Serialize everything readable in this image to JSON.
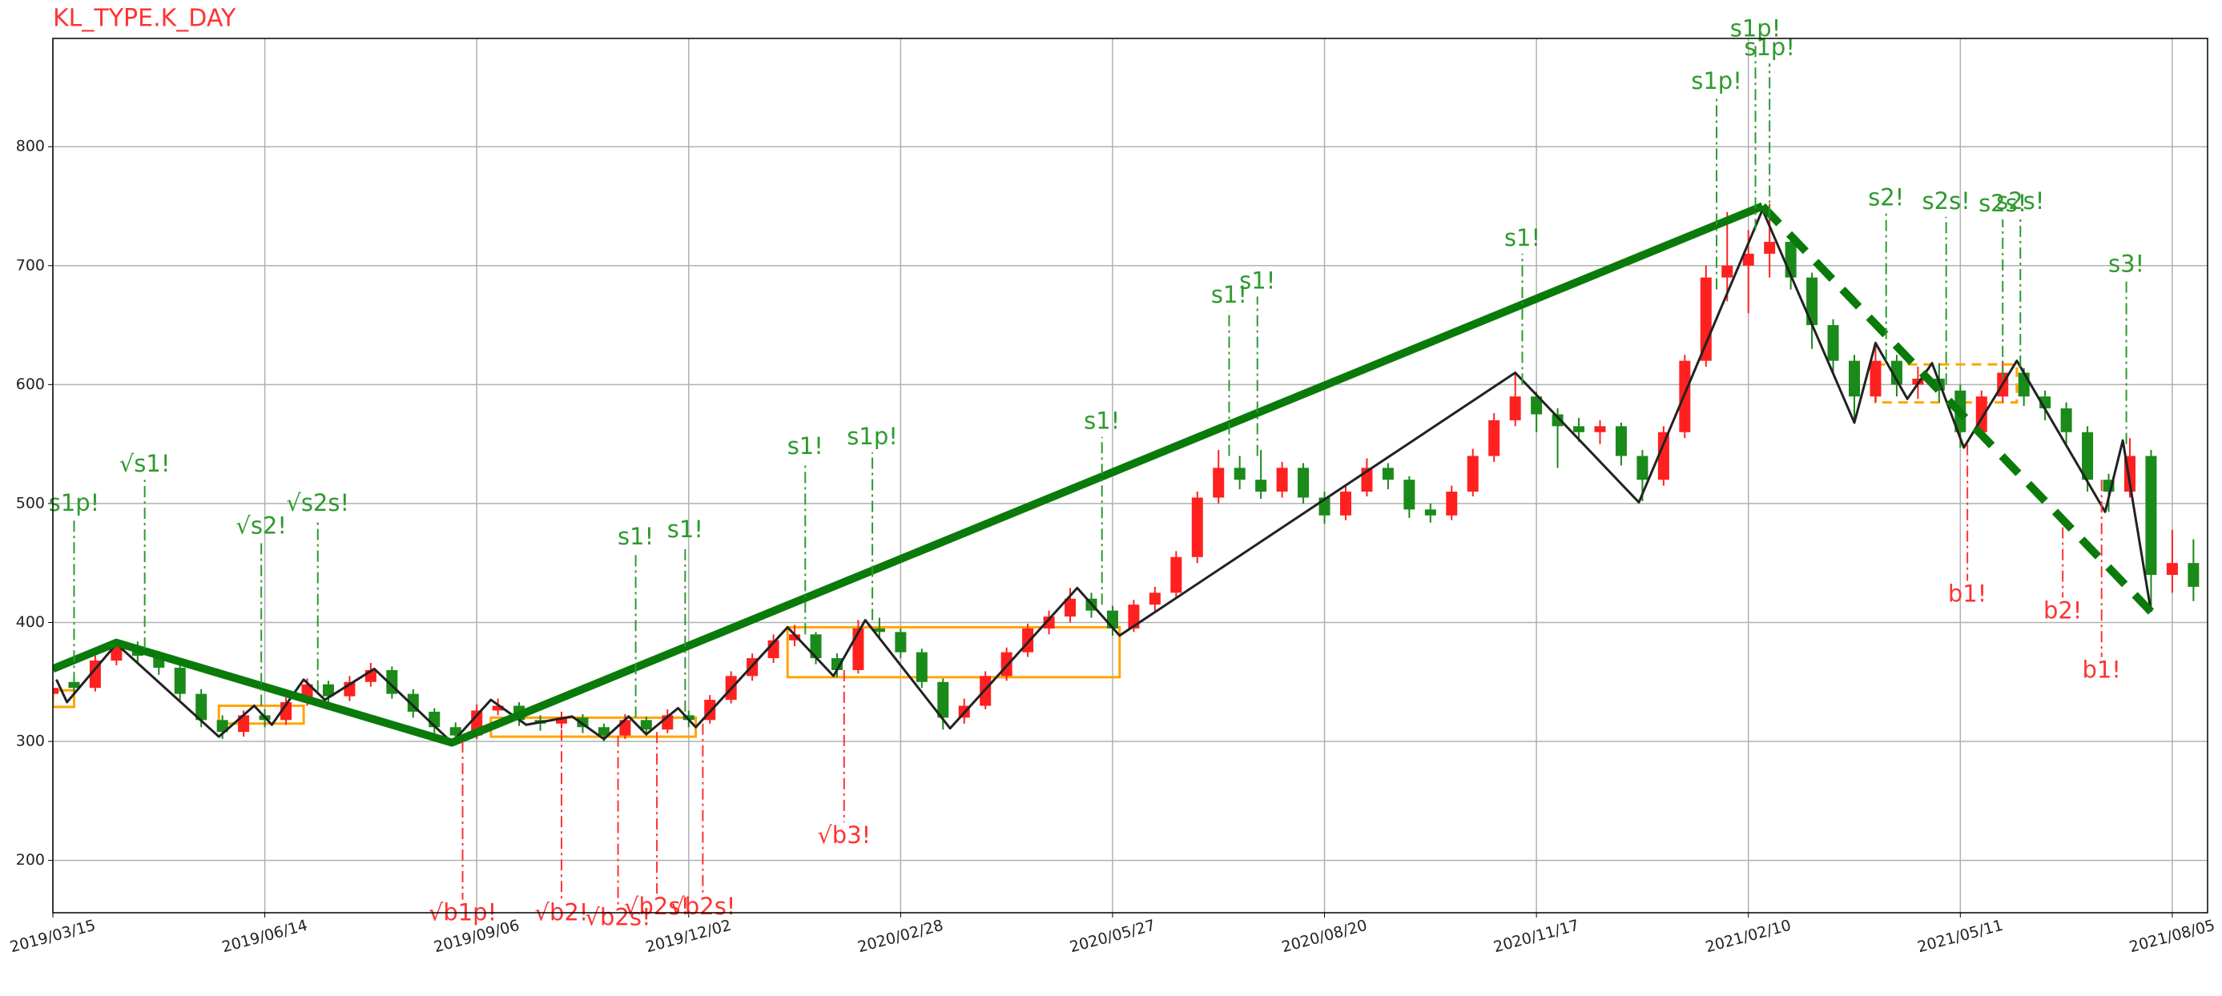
{
  "chart_data": {
    "type": "candlestick",
    "title": "KL_TYPE.K_DAY",
    "title_color": "#ff3333",
    "grid": true,
    "xlim": [
      0,
      610
    ],
    "xticks": [
      {
        "value": 0,
        "label": "2019/03/15"
      },
      {
        "value": 60,
        "label": "2019/06/14"
      },
      {
        "value": 120,
        "label": "2019/09/06"
      },
      {
        "value": 180,
        "label": "2019/12/02"
      },
      {
        "value": 240,
        "label": "2020/02/28"
      },
      {
        "value": 300,
        "label": "2020/05/27"
      },
      {
        "value": 360,
        "label": "2020/08/20"
      },
      {
        "value": 420,
        "label": "2020/11/17"
      },
      {
        "value": 480,
        "label": "2021/02/10"
      },
      {
        "value": 540,
        "label": "2021/05/11"
      },
      {
        "value": 600,
        "label": "2021/08/05"
      }
    ],
    "ylim": [
      156,
      891
    ],
    "yticks": [
      200,
      300,
      400,
      500,
      600,
      700,
      800
    ],
    "up_color": "#ff2020",
    "down_color": "#1a8a1a",
    "candles": {
      "x": [
        0,
        6,
        12,
        18,
        24,
        30,
        36,
        42,
        48,
        54,
        60,
        66,
        72,
        78,
        84,
        90,
        96,
        102,
        108,
        114,
        120,
        126,
        132,
        138,
        144,
        150,
        156,
        162,
        168,
        174,
        180,
        186,
        192,
        198,
        204,
        210,
        216,
        222,
        228,
        234,
        240,
        246,
        252,
        258,
        264,
        270,
        276,
        282,
        288,
        294,
        300,
        306,
        312,
        318,
        324,
        330,
        336,
        342,
        348,
        354,
        360,
        366,
        372,
        378,
        384,
        390,
        396,
        402,
        408,
        414,
        420,
        426,
        432,
        438,
        444,
        450,
        456,
        462,
        468,
        474,
        480,
        486,
        492,
        498,
        504,
        510,
        516,
        522,
        528,
        534,
        540,
        546,
        552,
        558,
        564,
        570,
        576,
        582,
        588,
        594,
        600,
        606
      ],
      "ohlc": [
        [
          340,
          350,
          335,
          345
        ],
        [
          350,
          356,
          340,
          345
        ],
        [
          345,
          372,
          342,
          368
        ],
        [
          368,
          386,
          364,
          380
        ],
        [
          380,
          384,
          366,
          372
        ],
        [
          372,
          376,
          356,
          362
        ],
        [
          362,
          365,
          335,
          340
        ],
        [
          340,
          344,
          312,
          318
        ],
        [
          318,
          322,
          302,
          308
        ],
        [
          308,
          326,
          304,
          322
        ],
        [
          322,
          327,
          312,
          318
        ],
        [
          318,
          337,
          314,
          333
        ],
        [
          333,
          353,
          330,
          348
        ],
        [
          348,
          351,
          333,
          338
        ],
        [
          338,
          355,
          334,
          350
        ],
        [
          350,
          366,
          346,
          360
        ],
        [
          360,
          363,
          336,
          340
        ],
        [
          340,
          344,
          320,
          325
        ],
        [
          325,
          328,
          307,
          312
        ],
        [
          312,
          316,
          299,
          305
        ],
        [
          305,
          331,
          302,
          326
        ],
        [
          326,
          336,
          322,
          330
        ],
        [
          330,
          333,
          313,
          318
        ],
        [
          318,
          322,
          309,
          315
        ],
        [
          315,
          325,
          311,
          320
        ],
        [
          320,
          323,
          307,
          312
        ],
        [
          312,
          315,
          300,
          305
        ],
        [
          305,
          323,
          302,
          318
        ],
        [
          318,
          321,
          305,
          310
        ],
        [
          310,
          327,
          307,
          322
        ],
        [
          322,
          326,
          312,
          318
        ],
        [
          318,
          339,
          315,
          335
        ],
        [
          335,
          359,
          332,
          355
        ],
        [
          355,
          374,
          351,
          370
        ],
        [
          370,
          390,
          366,
          385
        ],
        [
          385,
          398,
          380,
          390
        ],
        [
          390,
          392,
          365,
          370
        ],
        [
          370,
          374,
          354,
          360
        ],
        [
          360,
          402,
          357,
          395
        ],
        [
          395,
          404,
          386,
          392
        ],
        [
          392,
          395,
          370,
          375
        ],
        [
          375,
          378,
          345,
          350
        ],
        [
          350,
          353,
          310,
          320
        ],
        [
          320,
          336,
          315,
          330
        ],
        [
          330,
          359,
          327,
          355
        ],
        [
          355,
          379,
          351,
          375
        ],
        [
          375,
          399,
          371,
          395
        ],
        [
          395,
          410,
          390,
          405
        ],
        [
          405,
          429,
          400,
          420
        ],
        [
          420,
          425,
          404,
          410
        ],
        [
          410,
          414,
          389,
          395
        ],
        [
          395,
          419,
          392,
          415
        ],
        [
          415,
          430,
          410,
          425
        ],
        [
          425,
          460,
          421,
          455
        ],
        [
          455,
          510,
          450,
          505
        ],
        [
          505,
          545,
          500,
          530
        ],
        [
          530,
          540,
          512,
          520
        ],
        [
          520,
          545,
          504,
          510
        ],
        [
          510,
          535,
          505,
          530
        ],
        [
          530,
          534,
          500,
          505
        ],
        [
          505,
          510,
          483,
          490
        ],
        [
          490,
          515,
          486,
          510
        ],
        [
          510,
          538,
          506,
          530
        ],
        [
          530,
          534,
          512,
          520
        ],
        [
          520,
          523,
          488,
          495
        ],
        [
          495,
          500,
          484,
          490
        ],
        [
          490,
          515,
          486,
          510
        ],
        [
          510,
          546,
          506,
          540
        ],
        [
          540,
          576,
          535,
          570
        ],
        [
          570,
          610,
          565,
          590
        ],
        [
          590,
          594,
          560,
          575
        ],
        [
          575,
          580,
          530,
          565
        ],
        [
          565,
          572,
          552,
          560
        ],
        [
          560,
          570,
          550,
          565
        ],
        [
          565,
          568,
          532,
          540
        ],
        [
          540,
          545,
          502,
          520
        ],
        [
          520,
          565,
          515,
          560
        ],
        [
          560,
          625,
          555,
          620
        ],
        [
          620,
          700,
          615,
          690
        ],
        [
          690,
          745,
          670,
          700
        ],
        [
          700,
          730,
          660,
          710
        ],
        [
          710,
          752,
          690,
          720
        ],
        [
          720,
          725,
          680,
          690
        ],
        [
          690,
          694,
          630,
          650
        ],
        [
          650,
          655,
          610,
          620
        ],
        [
          620,
          625,
          568,
          590
        ],
        [
          590,
          635,
          585,
          620
        ],
        [
          620,
          625,
          590,
          600
        ],
        [
          600,
          615,
          588,
          605
        ],
        [
          605,
          618,
          585,
          595
        ],
        [
          595,
          600,
          547,
          560
        ],
        [
          560,
          595,
          555,
          590
        ],
        [
          590,
          620,
          585,
          610
        ],
        [
          610,
          614,
          582,
          590
        ],
        [
          590,
          595,
          570,
          580
        ],
        [
          580,
          585,
          550,
          560
        ],
        [
          560,
          565,
          510,
          520
        ],
        [
          520,
          525,
          493,
          510
        ],
        [
          510,
          555,
          505,
          540
        ],
        [
          540,
          545,
          409,
          440
        ],
        [
          440,
          478,
          425,
          450
        ],
        [
          450,
          470,
          418,
          430
        ]
      ]
    },
    "bi": {
      "color": "#222222",
      "x": [
        1,
        4,
        18,
        47,
        57,
        62,
        71,
        77,
        91,
        113,
        124,
        134,
        147,
        156,
        163,
        168,
        177,
        182,
        208,
        221,
        230,
        254,
        290,
        302,
        414,
        449,
        484,
        510,
        516,
        525,
        532,
        541,
        556,
        581,
        586,
        594
      ],
      "values": [
        352,
        333,
        382,
        304,
        330,
        314,
        352,
        335,
        361,
        299,
        335,
        314,
        321,
        302,
        321,
        306,
        328,
        312,
        396,
        355,
        402,
        311,
        429,
        389,
        610,
        501,
        747,
        568,
        635,
        588,
        618,
        547,
        620,
        493,
        553,
        409
      ]
    },
    "segments": [
      {
        "color": "#0a7a0a",
        "dashed": false,
        "x": [
          0,
          18,
          113,
          484
        ],
        "values": [
          361,
          383,
          299,
          750
        ]
      },
      {
        "color": "#0a7a0a",
        "dashed": true,
        "x": [
          484,
          594
        ],
        "values": [
          750,
          409
        ]
      }
    ],
    "zones": [
      {
        "color": "#ffa500",
        "dashed": false,
        "x": [
          0,
          6
        ],
        "range": [
          329,
          343
        ]
      },
      {
        "color": "#ffa500",
        "dashed": false,
        "x": [
          47,
          71
        ],
        "range": [
          315,
          330
        ]
      },
      {
        "color": "#ffa500",
        "dashed": false,
        "x": [
          124,
          182
        ],
        "range": [
          304,
          320
        ]
      },
      {
        "color": "#ffa500",
        "dashed": false,
        "x": [
          208,
          302
        ],
        "range": [
          354,
          396
        ]
      },
      {
        "color": "#ffa500",
        "dashed": true,
        "x": [
          516,
          556
        ],
        "range": [
          585,
          617
        ]
      }
    ],
    "annotations": [
      {
        "text": "s1p!",
        "x": 6,
        "value": 349,
        "text_y": 487,
        "color": "#2e9a2e"
      },
      {
        "text": "√s1!",
        "x": 26,
        "value": 378,
        "text_y": 520,
        "color": "#2e9a2e"
      },
      {
        "text": "√s2!",
        "x": 59,
        "value": 330,
        "text_y": 468,
        "color": "#2e9a2e"
      },
      {
        "text": "√s2s!",
        "x": 75,
        "value": 342,
        "text_y": 487,
        "color": "#2e9a2e"
      },
      {
        "text": "s1!",
        "x": 165,
        "value": 320,
        "text_y": 459,
        "color": "#2e9a2e"
      },
      {
        "text": "s1!",
        "x": 179,
        "value": 325,
        "text_y": 465,
        "color": "#2e9a2e"
      },
      {
        "text": "s1!",
        "x": 213,
        "value": 390,
        "text_y": 535,
        "color": "#2e9a2e"
      },
      {
        "text": "s1p!",
        "x": 232,
        "value": 402,
        "text_y": 543,
        "color": "#2e9a2e"
      },
      {
        "text": "s1!",
        "x": 297,
        "value": 415,
        "text_y": 556,
        "color": "#2e9a2e"
      },
      {
        "text": "s1!",
        "x": 333,
        "value": 540,
        "text_y": 662,
        "color": "#2e9a2e"
      },
      {
        "text": "s1!",
        "x": 341,
        "value": 540,
        "text_y": 674,
        "color": "#2e9a2e"
      },
      {
        "text": "s1!",
        "x": 416,
        "value": 600,
        "text_y": 710,
        "color": "#2e9a2e"
      },
      {
        "text": "s1p!",
        "x": 471,
        "value": 680,
        "text_y": 842,
        "color": "#2e9a2e"
      },
      {
        "text": "s1p!",
        "x": 482,
        "value": 730,
        "text_y": 886,
        "color": "#2e9a2e"
      },
      {
        "text": "s1p!",
        "x": 486,
        "value": 740,
        "text_y": 870,
        "color": "#2e9a2e"
      },
      {
        "text": "s2!",
        "x": 519,
        "value": 620,
        "text_y": 744,
        "color": "#2e9a2e"
      },
      {
        "text": "s2s!",
        "x": 536,
        "value": 600,
        "text_y": 741,
        "color": "#2e9a2e"
      },
      {
        "text": "s2s!",
        "x": 552,
        "value": 605,
        "text_y": 739,
        "color": "#2e9a2e"
      },
      {
        "text": "s2s!",
        "x": 557,
        "value": 615,
        "text_y": 741,
        "color": "#2e9a2e"
      },
      {
        "text": "s3!",
        "x": 587,
        "value": 550,
        "text_y": 688,
        "color": "#2e9a2e"
      },
      {
        "text": "√b1p!",
        "x": 116,
        "value": 300,
        "text_y": 167,
        "color": "#ff3333"
      },
      {
        "text": "√b2!",
        "x": 144,
        "value": 310,
        "text_y": 167,
        "color": "#ff3333"
      },
      {
        "text": "√b2s!",
        "x": 160,
        "value": 305,
        "text_y": 163,
        "color": "#ff3333"
      },
      {
        "text": "√b2s!",
        "x": 171,
        "value": 308,
        "text_y": 172,
        "color": "#ff3333"
      },
      {
        "text": "√b2s!",
        "x": 184,
        "value": 315,
        "text_y": 172,
        "color": "#ff3333"
      },
      {
        "text": "√b3!",
        "x": 224,
        "value": 360,
        "text_y": 232,
        "color": "#ff3333"
      },
      {
        "text": "b1!",
        "x": 542,
        "value": 550,
        "text_y": 435,
        "color": "#ff3333"
      },
      {
        "text": "b2!",
        "x": 569,
        "value": 480,
        "text_y": 421,
        "color": "#ff3333"
      },
      {
        "text": "b1!",
        "x": 580,
        "value": 520,
        "text_y": 371,
        "color": "#ff3333"
      }
    ]
  }
}
